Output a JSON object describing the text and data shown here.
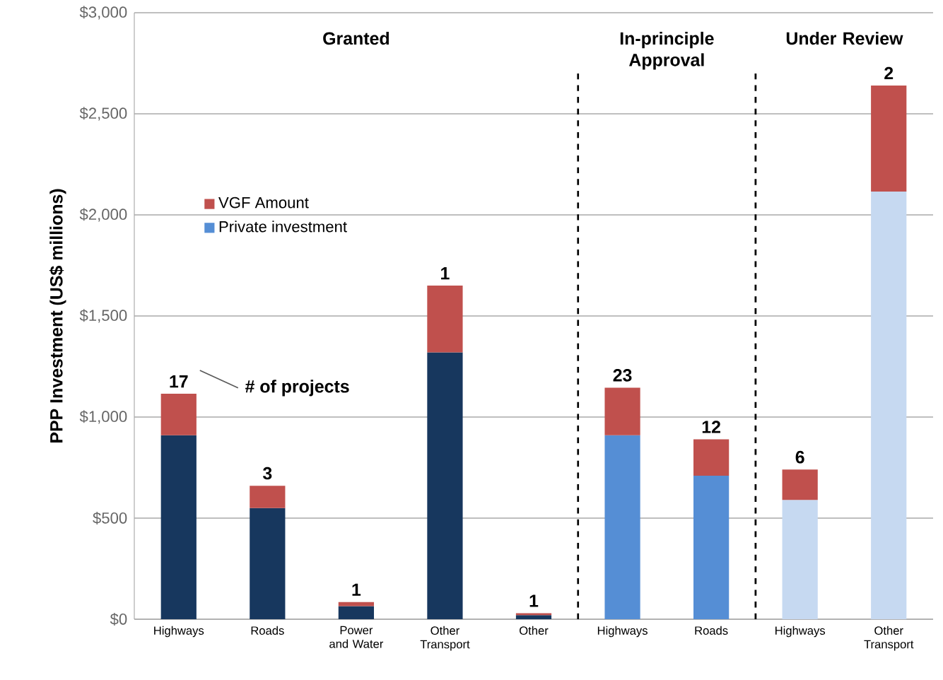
{
  "chart_data": {
    "type": "bar",
    "stacked": true,
    "ylabel": "PPP Investment (US$ millions)",
    "categories": [
      "Highways",
      "Roads",
      "Power and Water",
      "Other Transport",
      "Other",
      "Highways",
      "Roads",
      "Highways",
      "Other Transport"
    ],
    "series": [
      {
        "name": "Private investment",
        "color": "#558ed5",
        "colors": [
          "#17375e",
          "#17375e",
          "#17375e",
          "#17375e",
          "#17375e",
          "#558ed5",
          "#558ed5",
          "#c6d9f1",
          "#c6d9f1"
        ],
        "values": [
          910,
          550,
          65,
          1320,
          20,
          910,
          710,
          590,
          2115
        ]
      },
      {
        "name": "VGF Amount",
        "color": "#c0504d",
        "values": [
          205,
          110,
          20,
          330,
          10,
          235,
          180,
          150,
          525
        ]
      }
    ],
    "ylim": [
      0,
      3000
    ],
    "yticks": [
      {
        "value": 0,
        "label": "$0"
      },
      {
        "value": 500,
        "label": "$500"
      },
      {
        "value": 1000,
        "label": "$1,000"
      },
      {
        "value": 1500,
        "label": "$1,500"
      },
      {
        "value": 2000,
        "label": "$2,000"
      },
      {
        "value": 2500,
        "label": "$2,500"
      },
      {
        "value": 3000,
        "label": "$3,000"
      }
    ],
    "grid": "y",
    "legend": "left",
    "annotations": [
      "Granted",
      "In-principle Approval",
      "Under Review",
      "17",
      "3",
      "1",
      "1",
      "1",
      "23",
      "12",
      "6",
      "2",
      "# of projects"
    ]
  }
}
